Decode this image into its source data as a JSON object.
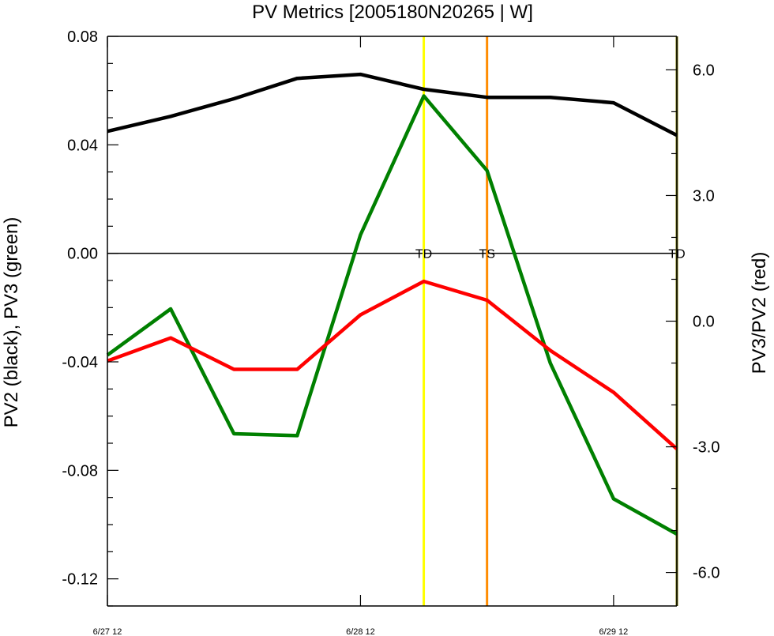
{
  "chart_data": {
    "type": "line",
    "title": "PV Metrics [2005180N20265 | W]",
    "ylabel_left": "PV2 (black), PV3 (green)",
    "ylabel_right": "PV3/PV2 (red)",
    "x": [
      0,
      0.25,
      0.5,
      0.75,
      1.0,
      1.25,
      1.5,
      1.75,
      2.0,
      2.25
    ],
    "xlim": [
      0,
      2.25
    ],
    "x_ticks": [
      {
        "x": 0,
        "label": "6/27 12"
      },
      {
        "x": 1,
        "label": "6/28 12"
      },
      {
        "x": 2,
        "label": "6/29 12"
      }
    ],
    "ylim_left": [
      -0.13,
      0.08
    ],
    "yticks_left": [
      "0.08",
      "0.04",
      "0.00",
      "-0.04",
      "-0.08",
      "-0.12"
    ],
    "ylim_right": [
      -6.8,
      6.8
    ],
    "yticks_right": [
      "6.0",
      "3.0",
      "0.0",
      "-3.0",
      "-6.0"
    ],
    "zero_line": true,
    "series": [
      {
        "color": "#000000",
        "axis": "left",
        "values": [
          0.045,
          0.0505,
          0.057,
          0.0645,
          0.066,
          0.0605,
          0.0575,
          0.0575,
          0.0555,
          0.0435
        ]
      },
      {
        "color": "#008000",
        "axis": "left",
        "values": [
          -0.0375,
          -0.0205,
          -0.0665,
          -0.0672,
          0.0068,
          0.058,
          0.0305,
          -0.0405,
          -0.0905,
          -0.1035
        ]
      },
      {
        "color": "#ff0000",
        "axis": "right",
        "values": [
          -0.95,
          -0.4,
          -1.15,
          -1.15,
          0.15,
          0.95,
          0.5,
          -0.7,
          -1.7,
          -3.05
        ]
      }
    ],
    "markers": [
      {
        "x": 1.25,
        "label": "TD",
        "color": "#ffff00"
      },
      {
        "x": 1.5,
        "label": "TS",
        "color": "#ff8c00"
      },
      {
        "x": 2.25,
        "label": "TD",
        "color": "#7a7a00"
      }
    ]
  }
}
